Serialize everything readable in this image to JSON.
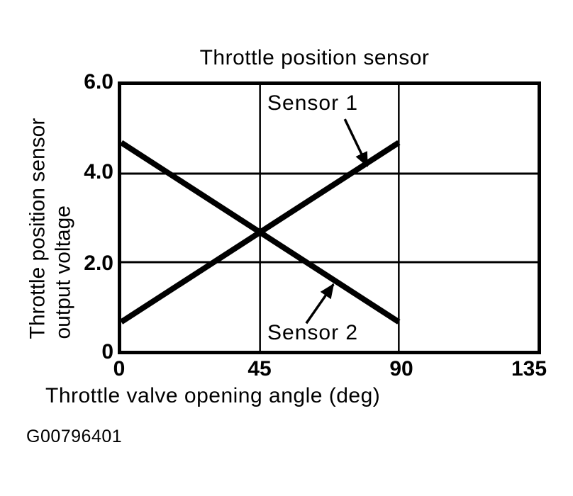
{
  "page": {
    "background": "#ffffff",
    "ink": "#000000",
    "figure_code": "G00796401"
  },
  "chart_data": {
    "type": "line",
    "title": "Throttle position sensor",
    "xlabel": "Throttle valve opening angle (deg)",
    "ylabel": "Throttle position sensor output voltage",
    "ylabel_lines": [
      "Throttle position sensor",
      "output voltage"
    ],
    "xlim": [
      0,
      135
    ],
    "ylim": [
      0,
      6.0
    ],
    "xticks": [
      0,
      45,
      90,
      135
    ],
    "xtick_labels": [
      "0",
      "45",
      "90",
      "135"
    ],
    "yticks": [
      0,
      2.0,
      4.0,
      6.0
    ],
    "ytick_labels": [
      "0",
      "2.0",
      "4.0",
      "6.0"
    ],
    "grid": true,
    "legend_position": "inline-annotations",
    "line_color": "#000000",
    "series": [
      {
        "name": "Sensor 1",
        "x": [
          0,
          90
        ],
        "y": [
          0.65,
          4.7
        ]
      },
      {
        "name": "Sensor 2",
        "x": [
          0,
          90
        ],
        "y": [
          4.7,
          0.65
        ]
      }
    ],
    "annotations": [
      {
        "text": "Sensor 1",
        "arrow_from": [
          72.5,
          5.23
        ],
        "arrow_to": [
          79.8,
          4.17
        ]
      },
      {
        "text": "Sensor 2",
        "arrow_from": [
          60.0,
          0.62
        ],
        "arrow_to": [
          68.8,
          1.5
        ]
      }
    ]
  }
}
